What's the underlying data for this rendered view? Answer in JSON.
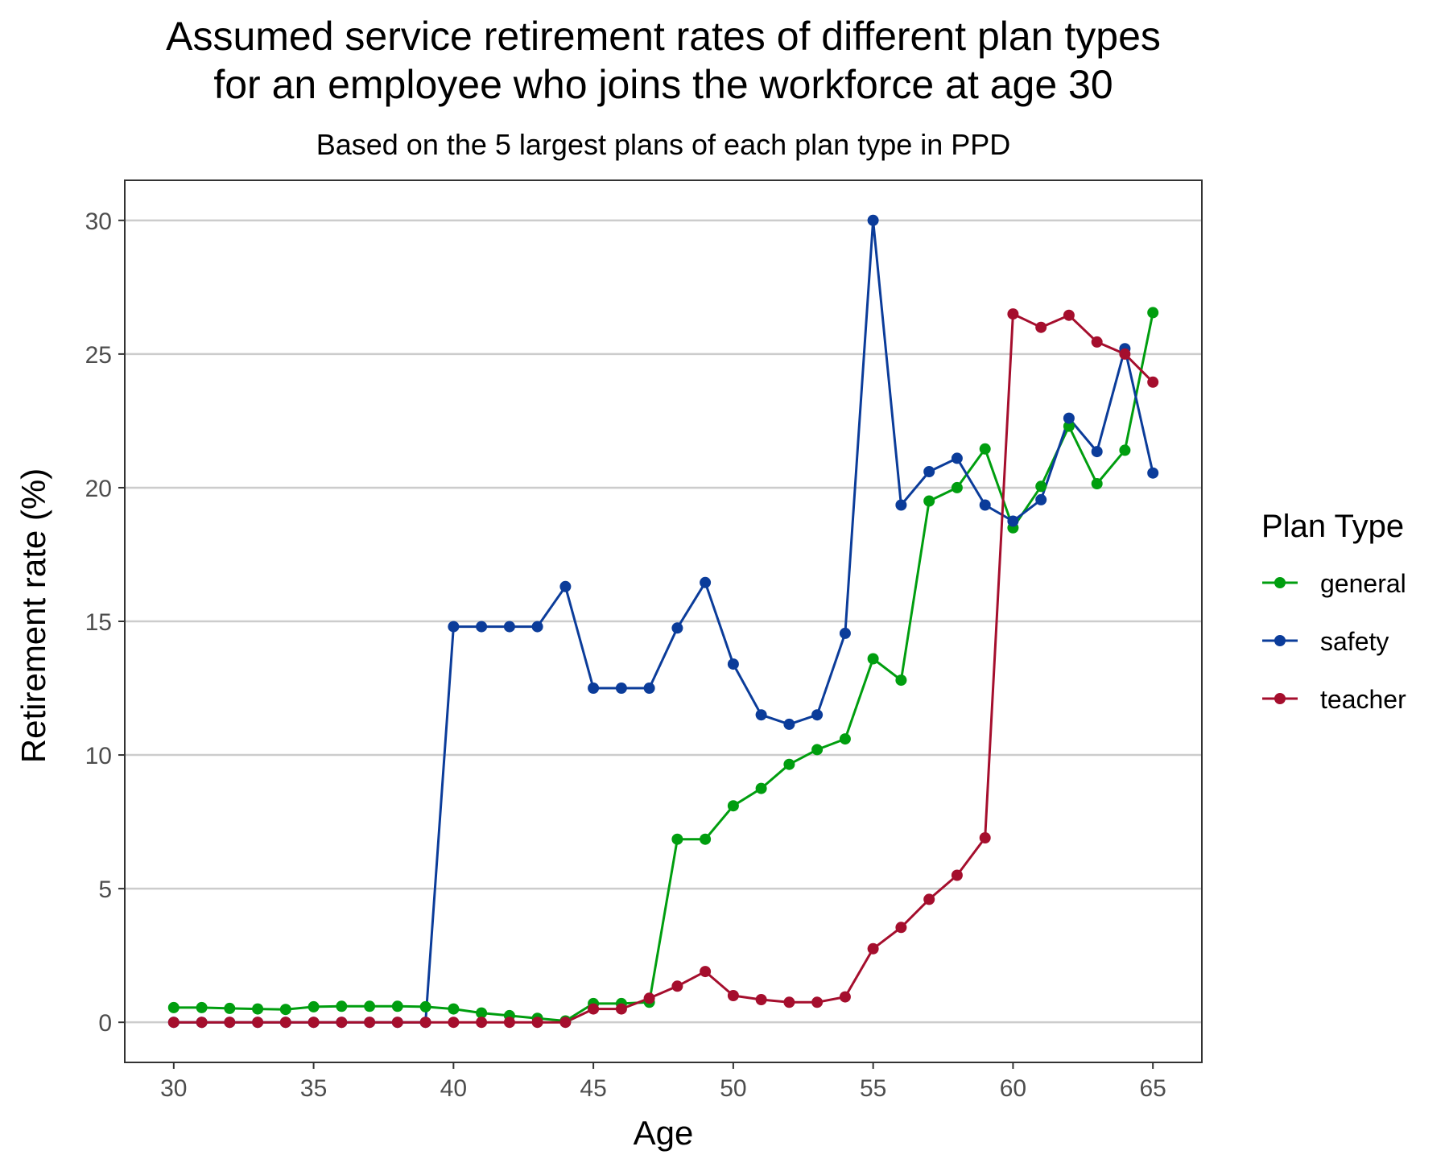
{
  "chart_data": {
    "type": "line",
    "title_lines": [
      "Assumed service retirement rates of different plan types",
      "for an employee who joins the workforce at age 30"
    ],
    "subtitle": "Based on the 5 largest plans of each plan type in PPD",
    "xlabel": "Age",
    "ylabel": "Retirement rate (%)",
    "xlim": [
      28.25,
      66.75
    ],
    "ylim": [
      -1.5,
      31.5
    ],
    "xticks": [
      30,
      35,
      40,
      45,
      50,
      55,
      60,
      65
    ],
    "yticks": [
      0,
      5,
      10,
      15,
      20,
      25,
      30
    ],
    "grid": "horizontal major",
    "legend_title": "Plan Type",
    "legend_position": "right",
    "x": [
      30,
      31,
      32,
      33,
      34,
      35,
      36,
      37,
      38,
      39,
      40,
      41,
      42,
      43,
      44,
      45,
      46,
      47,
      48,
      49,
      50,
      51,
      52,
      53,
      54,
      55,
      56,
      57,
      58,
      59,
      60,
      61,
      62,
      63,
      64,
      65
    ],
    "series": [
      {
        "name": "general",
        "color": "#009E0F",
        "values": [
          0.55,
          0.55,
          0.52,
          0.5,
          0.48,
          0.58,
          0.6,
          0.6,
          0.6,
          0.58,
          0.5,
          0.35,
          0.25,
          0.15,
          0.05,
          0.7,
          0.7,
          0.75,
          6.85,
          6.85,
          8.1,
          8.75,
          9.65,
          10.2,
          10.6,
          13.6,
          12.8,
          19.5,
          20.0,
          21.45,
          18.5,
          20.05,
          22.3,
          20.15,
          21.4,
          26.55
        ]
      },
      {
        "name": "safety",
        "color": "#0B3C9A",
        "values": [
          0,
          0,
          0,
          0,
          0,
          0,
          0,
          0,
          0,
          0,
          14.8,
          14.8,
          14.8,
          14.8,
          16.3,
          12.5,
          12.5,
          12.5,
          14.75,
          16.45,
          13.4,
          11.5,
          11.15,
          11.5,
          14.55,
          30.0,
          19.35,
          20.6,
          21.1,
          19.35,
          18.75,
          19.55,
          22.6,
          21.35,
          25.2,
          20.55
        ]
      },
      {
        "name": "teacher",
        "color": "#A50E2D",
        "values": [
          0,
          0,
          0,
          0,
          0,
          0,
          0,
          0,
          0,
          0,
          0,
          0,
          0,
          0,
          0,
          0.5,
          0.5,
          0.9,
          1.35,
          1.9,
          1.0,
          0.85,
          0.75,
          0.75,
          0.95,
          2.75,
          3.55,
          4.6,
          5.5,
          6.9,
          26.5,
          26.0,
          26.45,
          25.45,
          25.0,
          23.95
        ]
      }
    ]
  }
}
